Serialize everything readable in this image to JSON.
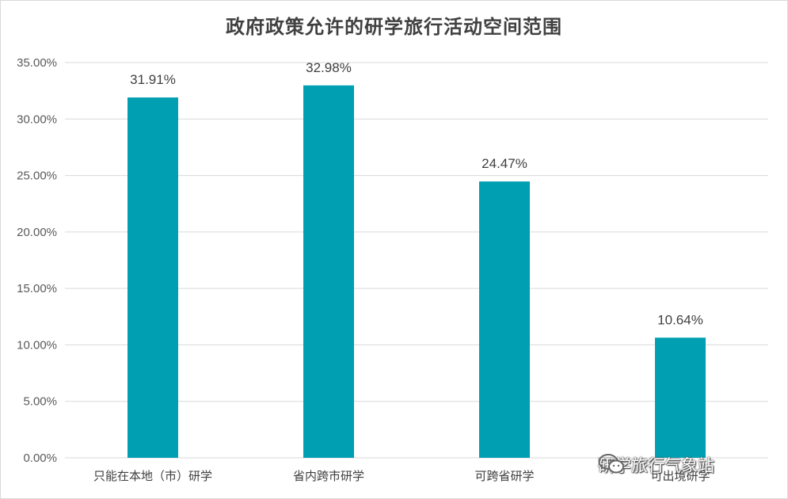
{
  "chart_data": {
    "type": "bar",
    "title": "政府政策允许的研学旅行活动空间范围",
    "categories": [
      "只能在本地（市）研学",
      "省内跨市研学",
      "可跨省研学",
      "可出境研学"
    ],
    "values": [
      31.91,
      32.98,
      24.47,
      10.64
    ],
    "data_labels": [
      "31.91%",
      "32.98%",
      "24.47%",
      "10.64%"
    ],
    "yticks": [
      "0.00%",
      "5.00%",
      "10.00%",
      "15.00%",
      "20.00%",
      "25.00%",
      "30.00%",
      "35.00%"
    ],
    "ylim": [
      0,
      35
    ],
    "ytick_step": 5,
    "grid": true,
    "bar_color": "#009fb2",
    "grid_color": "#d9d9d9"
  },
  "watermark": {
    "text": "研学旅行气象站",
    "icon": "wechat-icon"
  }
}
